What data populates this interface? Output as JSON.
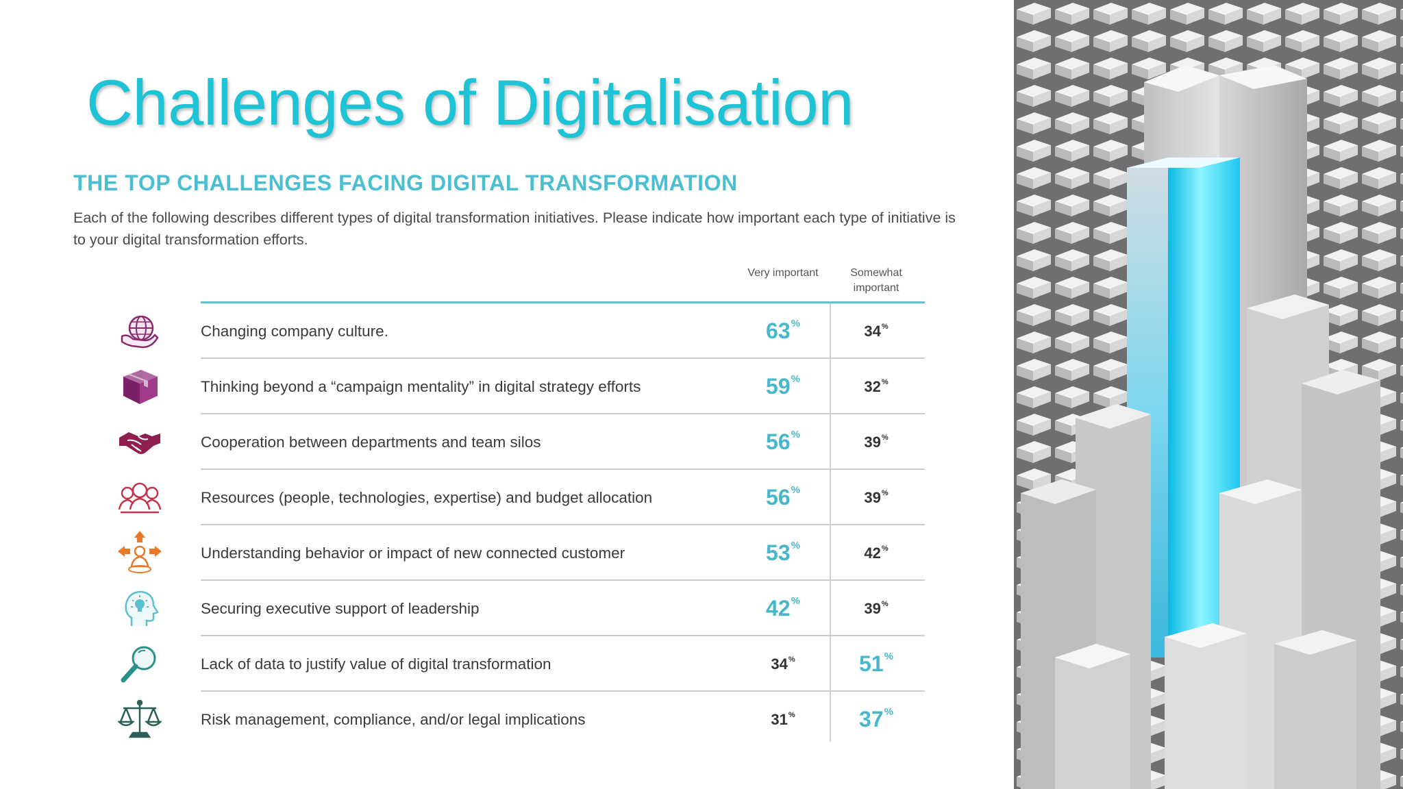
{
  "slide": {
    "title": "Challenges of Digitalisation"
  },
  "survey": {
    "heading": "THE TOP CHALLENGES FACING DIGITAL TRANSFORMATION",
    "intro": "Each of the following describes different types of digital transformation initiatives. Please indicate how important each type of initiative is to your digital transformation efforts.",
    "columns": {
      "very": "Very important",
      "somewhat": "Somewhat important"
    },
    "rows": [
      {
        "label": "Changing company culture.",
        "very": "63",
        "somewhat": "34",
        "icon": "globe-hand-icon",
        "highlight": "very"
      },
      {
        "label": "Thinking beyond a “campaign mentality” in digital strategy efforts",
        "very": "59",
        "somewhat": "32",
        "icon": "box-icon",
        "highlight": "very"
      },
      {
        "label": "Cooperation between departments and team silos",
        "very": "56",
        "somewhat": "39",
        "icon": "handshake-icon",
        "highlight": "very"
      },
      {
        "label": "Resources (people, technologies, expertise) and budget allocation",
        "very": "56",
        "somewhat": "39",
        "icon": "people-group-icon",
        "highlight": "very"
      },
      {
        "label": "Understanding behavior or impact of new connected customer",
        "very": "53",
        "somewhat": "42",
        "icon": "customer-arrows-icon",
        "highlight": "very"
      },
      {
        "label": "Securing executive support of leadership",
        "very": "42",
        "somewhat": "39",
        "icon": "head-lightbulb-icon",
        "highlight": "very"
      },
      {
        "label": "Lack of data to justify value of digital transformation",
        "very": "34",
        "somewhat": "51",
        "icon": "magnifier-icon",
        "highlight": "somewhat"
      },
      {
        "label": "Risk management, compliance, and/or legal implications",
        "very": "31",
        "somewhat": "37",
        "icon": "scales-icon",
        "highlight": "somewhat"
      }
    ],
    "percent_sign": "%",
    "colors": {
      "accent": "#47b8cc",
      "title": "#1ec3d6",
      "plain": "#333333"
    }
  }
}
